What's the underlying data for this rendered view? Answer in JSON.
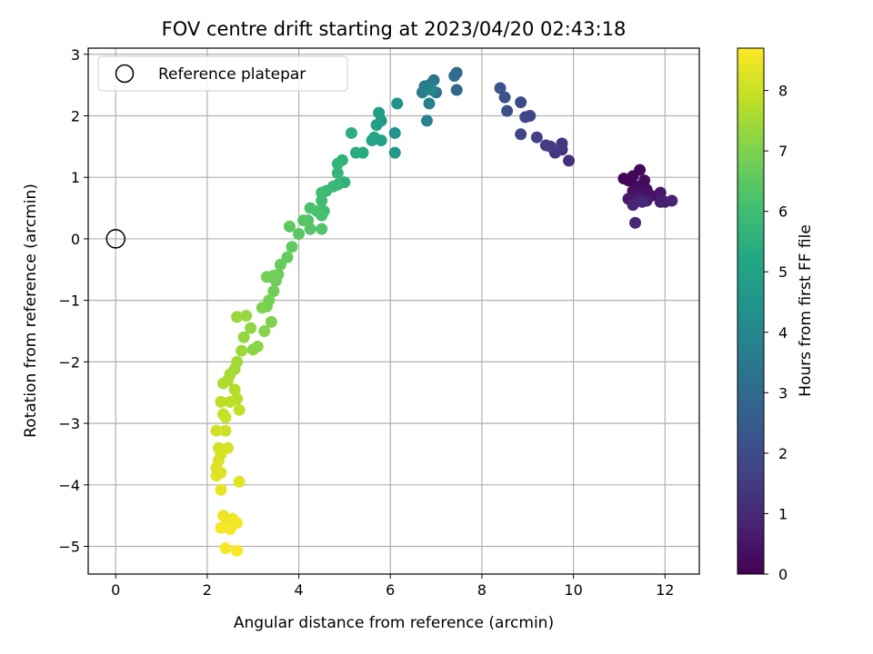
{
  "chart_data": {
    "type": "scatter",
    "title": "FOV centre drift starting at 2023/04/20 02:43:18",
    "xlabel": "Angular distance from reference (arcmin)",
    "ylabel": "Rotation from reference (arcmin)",
    "xlim": [
      -0.6,
      12.75
    ],
    "ylim": [
      -5.45,
      3.1
    ],
    "xticks": [
      0,
      2,
      4,
      6,
      8,
      10,
      12
    ],
    "yticks": [
      -5,
      -4,
      -3,
      -2,
      -1,
      0,
      1,
      2,
      3
    ],
    "grid": true,
    "colorbar": {
      "label": "Hours from first FF file",
      "range": [
        0,
        8.7
      ],
      "ticks": [
        0,
        1,
        2,
        3,
        4,
        5,
        6,
        7,
        8
      ],
      "colormap": "viridis"
    },
    "legend": {
      "position": "top-left",
      "entries": [
        "Reference platepar"
      ]
    },
    "reference_point": {
      "x": 0,
      "y": 0
    },
    "points": [
      {
        "x": 11.1,
        "y": 0.98,
        "h": 0.05
      },
      {
        "x": 11.2,
        "y": 0.95,
        "h": 0.1
      },
      {
        "x": 11.3,
        "y": 1.02,
        "h": 0.15
      },
      {
        "x": 11.45,
        "y": 1.12,
        "h": 0.2
      },
      {
        "x": 11.55,
        "y": 0.95,
        "h": 0.25
      },
      {
        "x": 11.4,
        "y": 0.85,
        "h": 0.3
      },
      {
        "x": 11.6,
        "y": 0.8,
        "h": 0.35
      },
      {
        "x": 11.3,
        "y": 0.78,
        "h": 0.4
      },
      {
        "x": 11.5,
        "y": 0.72,
        "h": 0.45
      },
      {
        "x": 11.7,
        "y": 0.7,
        "h": 0.5
      },
      {
        "x": 11.9,
        "y": 0.75,
        "h": 0.55
      },
      {
        "x": 11.2,
        "y": 0.65,
        "h": 0.6
      },
      {
        "x": 11.45,
        "y": 0.65,
        "h": 0.65
      },
      {
        "x": 11.6,
        "y": 0.62,
        "h": 0.7
      },
      {
        "x": 11.9,
        "y": 0.6,
        "h": 0.75
      },
      {
        "x": 12.0,
        "y": 0.6,
        "h": 0.8
      },
      {
        "x": 12.15,
        "y": 0.62,
        "h": 0.85
      },
      {
        "x": 11.3,
        "y": 0.55,
        "h": 0.9
      },
      {
        "x": 11.35,
        "y": 0.26,
        "h": 0.95
      },
      {
        "x": 11.5,
        "y": 0.6,
        "h": 1.0
      },
      {
        "x": 9.9,
        "y": 1.27,
        "h": 1.2
      },
      {
        "x": 9.75,
        "y": 1.45,
        "h": 1.3
      },
      {
        "x": 9.75,
        "y": 1.55,
        "h": 1.35
      },
      {
        "x": 9.6,
        "y": 1.4,
        "h": 1.4
      },
      {
        "x": 9.5,
        "y": 1.5,
        "h": 1.5
      },
      {
        "x": 9.4,
        "y": 1.52,
        "h": 1.55
      },
      {
        "x": 9.2,
        "y": 1.65,
        "h": 1.65
      },
      {
        "x": 8.85,
        "y": 1.7,
        "h": 1.75
      },
      {
        "x": 9.05,
        "y": 2.0,
        "h": 1.85
      },
      {
        "x": 8.95,
        "y": 1.98,
        "h": 1.9
      },
      {
        "x": 8.85,
        "y": 2.22,
        "h": 2.0
      },
      {
        "x": 8.55,
        "y": 2.08,
        "h": 2.1
      },
      {
        "x": 8.5,
        "y": 2.3,
        "h": 2.2
      },
      {
        "x": 8.4,
        "y": 2.45,
        "h": 2.3
      },
      {
        "x": 7.45,
        "y": 2.42,
        "h": 2.9
      },
      {
        "x": 7.45,
        "y": 2.7,
        "h": 3.0
      },
      {
        "x": 7.4,
        "y": 2.65,
        "h": 3.1
      },
      {
        "x": 7.0,
        "y": 2.38,
        "h": 3.3
      },
      {
        "x": 6.95,
        "y": 2.58,
        "h": 3.4
      },
      {
        "x": 6.85,
        "y": 2.5,
        "h": 3.5
      },
      {
        "x": 6.75,
        "y": 2.48,
        "h": 3.6
      },
      {
        "x": 6.7,
        "y": 2.38,
        "h": 3.7
      },
      {
        "x": 6.85,
        "y": 2.2,
        "h": 3.8
      },
      {
        "x": 6.8,
        "y": 1.92,
        "h": 3.9
      },
      {
        "x": 6.9,
        "y": 2.42,
        "h": 3.95
      },
      {
        "x": 6.15,
        "y": 2.2,
        "h": 4.4
      },
      {
        "x": 6.1,
        "y": 1.72,
        "h": 4.5
      },
      {
        "x": 6.1,
        "y": 1.4,
        "h": 4.6
      },
      {
        "x": 5.8,
        "y": 1.92,
        "h": 4.7
      },
      {
        "x": 5.75,
        "y": 2.05,
        "h": 4.8
      },
      {
        "x": 5.7,
        "y": 1.85,
        "h": 4.9
      },
      {
        "x": 5.8,
        "y": 1.6,
        "h": 5.0
      },
      {
        "x": 5.65,
        "y": 1.65,
        "h": 5.1
      },
      {
        "x": 5.6,
        "y": 1.6,
        "h": 5.15
      },
      {
        "x": 5.4,
        "y": 1.4,
        "h": 5.3
      },
      {
        "x": 5.25,
        "y": 1.4,
        "h": 5.4
      },
      {
        "x": 5.15,
        "y": 1.72,
        "h": 5.5
      },
      {
        "x": 5.0,
        "y": 0.92,
        "h": 5.6
      },
      {
        "x": 4.95,
        "y": 1.28,
        "h": 5.65
      },
      {
        "x": 4.85,
        "y": 1.22,
        "h": 5.7
      },
      {
        "x": 4.85,
        "y": 1.07,
        "h": 5.75
      },
      {
        "x": 4.85,
        "y": 0.88,
        "h": 5.8
      },
      {
        "x": 4.75,
        "y": 0.85,
        "h": 5.85
      },
      {
        "x": 4.6,
        "y": 0.78,
        "h": 5.9
      },
      {
        "x": 4.5,
        "y": 0.75,
        "h": 5.95
      },
      {
        "x": 4.5,
        "y": 0.62,
        "h": 6.0
      },
      {
        "x": 4.55,
        "y": 0.45,
        "h": 6.05
      },
      {
        "x": 4.5,
        "y": 0.38,
        "h": 6.1
      },
      {
        "x": 4.4,
        "y": 0.45,
        "h": 6.15
      },
      {
        "x": 4.25,
        "y": 0.5,
        "h": 6.2
      },
      {
        "x": 4.2,
        "y": 0.3,
        "h": 6.25
      },
      {
        "x": 4.5,
        "y": 0.16,
        "h": 6.3
      },
      {
        "x": 4.25,
        "y": 0.16,
        "h": 6.35
      },
      {
        "x": 4.1,
        "y": 0.3,
        "h": 6.4
      },
      {
        "x": 4.0,
        "y": 0.08,
        "h": 6.45
      },
      {
        "x": 3.8,
        "y": 0.2,
        "h": 6.5
      },
      {
        "x": 3.85,
        "y": -0.13,
        "h": 6.55
      },
      {
        "x": 3.75,
        "y": -0.3,
        "h": 6.6
      },
      {
        "x": 3.6,
        "y": -0.42,
        "h": 6.65
      },
      {
        "x": 3.55,
        "y": -0.58,
        "h": 6.7
      },
      {
        "x": 3.5,
        "y": -0.68,
        "h": 6.75
      },
      {
        "x": 3.45,
        "y": -0.85,
        "h": 6.8
      },
      {
        "x": 3.45,
        "y": -0.6,
        "h": 6.82
      },
      {
        "x": 3.3,
        "y": -0.62,
        "h": 6.85
      },
      {
        "x": 3.35,
        "y": -1.0,
        "h": 6.9
      },
      {
        "x": 3.3,
        "y": -1.1,
        "h": 6.95
      },
      {
        "x": 3.2,
        "y": -1.12,
        "h": 7.0
      },
      {
        "x": 3.4,
        "y": -1.35,
        "h": 7.05
      },
      {
        "x": 3.25,
        "y": -1.5,
        "h": 7.1
      },
      {
        "x": 3.1,
        "y": -1.75,
        "h": 7.15
      },
      {
        "x": 3.0,
        "y": -1.8,
        "h": 7.2
      },
      {
        "x": 2.95,
        "y": -1.45,
        "h": 7.25
      },
      {
        "x": 2.8,
        "y": -1.6,
        "h": 7.3
      },
      {
        "x": 2.85,
        "y": -1.25,
        "h": 7.32
      },
      {
        "x": 2.65,
        "y": -1.27,
        "h": 7.35
      },
      {
        "x": 2.75,
        "y": -1.82,
        "h": 7.4
      },
      {
        "x": 2.65,
        "y": -2.0,
        "h": 7.45
      },
      {
        "x": 2.6,
        "y": -2.12,
        "h": 7.5
      },
      {
        "x": 2.5,
        "y": -2.2,
        "h": 7.55
      },
      {
        "x": 2.45,
        "y": -2.3,
        "h": 7.6
      },
      {
        "x": 2.35,
        "y": -2.35,
        "h": 7.65
      },
      {
        "x": 2.6,
        "y": -2.45,
        "h": 7.7
      },
      {
        "x": 2.65,
        "y": -2.6,
        "h": 7.75
      },
      {
        "x": 2.5,
        "y": -2.65,
        "h": 7.8
      },
      {
        "x": 2.3,
        "y": -2.65,
        "h": 7.85
      },
      {
        "x": 2.7,
        "y": -2.78,
        "h": 7.9
      },
      {
        "x": 2.35,
        "y": -2.85,
        "h": 7.95
      },
      {
        "x": 2.4,
        "y": -2.9,
        "h": 8.0
      },
      {
        "x": 2.4,
        "y": -3.12,
        "h": 8.05
      },
      {
        "x": 2.2,
        "y": -3.12,
        "h": 8.1
      },
      {
        "x": 2.25,
        "y": -3.4,
        "h": 8.12
      },
      {
        "x": 2.45,
        "y": -3.4,
        "h": 8.15
      },
      {
        "x": 2.3,
        "y": -3.5,
        "h": 8.18
      },
      {
        "x": 2.25,
        "y": -3.6,
        "h": 8.2
      },
      {
        "x": 2.2,
        "y": -3.72,
        "h": 8.25
      },
      {
        "x": 2.3,
        "y": -3.8,
        "h": 8.3
      },
      {
        "x": 2.2,
        "y": -3.85,
        "h": 8.32
      },
      {
        "x": 2.7,
        "y": -3.95,
        "h": 8.35
      },
      {
        "x": 2.3,
        "y": -4.08,
        "h": 8.4
      },
      {
        "x": 2.35,
        "y": -4.5,
        "h": 8.45
      },
      {
        "x": 2.55,
        "y": -4.55,
        "h": 8.5
      },
      {
        "x": 2.45,
        "y": -4.6,
        "h": 8.52
      },
      {
        "x": 2.65,
        "y": -4.62,
        "h": 8.55
      },
      {
        "x": 2.3,
        "y": -4.7,
        "h": 8.6
      },
      {
        "x": 2.5,
        "y": -4.72,
        "h": 8.62
      },
      {
        "x": 2.4,
        "y": -5.03,
        "h": 8.65
      },
      {
        "x": 2.65,
        "y": -5.07,
        "h": 8.7
      }
    ]
  }
}
